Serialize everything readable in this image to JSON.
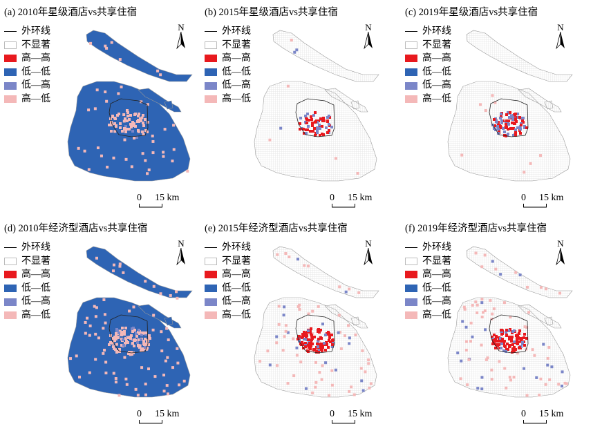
{
  "legend": {
    "items": [
      {
        "label": "外环线",
        "kind": "line",
        "color": "#000000"
      },
      {
        "label": "不显著",
        "kind": "box",
        "color": "#ffffff"
      },
      {
        "label": "高—高",
        "kind": "box",
        "color": "#e8191e"
      },
      {
        "label": "低—低",
        "kind": "box",
        "color": "#2e64b4"
      },
      {
        "label": "低—高",
        "kind": "box",
        "color": "#7b86c8"
      },
      {
        "label": "高—低",
        "kind": "box",
        "color": "#f4b8b8"
      }
    ]
  },
  "north_label": "N",
  "scale": {
    "zero": "0",
    "value": "15 km"
  },
  "panels": [
    {
      "title": "(a) 2010年星级酒店vs共享住宿",
      "variant": "a"
    },
    {
      "title": "(b) 2015年星级酒店vs共享住宿",
      "variant": "b"
    },
    {
      "title": "(c) 2019年星级酒店vs共享住宿",
      "variant": "c"
    },
    {
      "title": "(d) 2010年经济型酒店vs共享住宿",
      "variant": "d"
    },
    {
      "title": "(e) 2015年经济型酒店vs共享住宿",
      "variant": "e"
    },
    {
      "title": "(f) 2019年经济型酒店vs共享住宿",
      "variant": "f"
    }
  ],
  "colors": {
    "hh": "#e8191e",
    "ll": "#2e64b4",
    "lh": "#7b86c8",
    "hl": "#f4b8b8",
    "ns_fill": "#ffffff",
    "ns_grid": "#d6d6d6",
    "boundary": "#9a9a9a"
  }
}
